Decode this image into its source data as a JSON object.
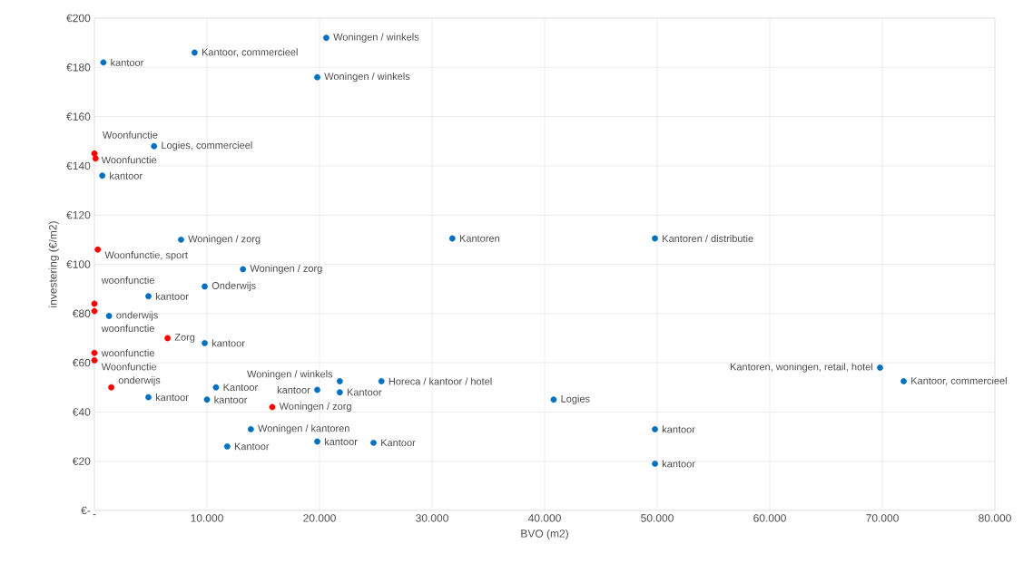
{
  "chart_data": {
    "type": "scatter",
    "xlabel": "BVO (m2)",
    "ylabel": "investering (€/m2)",
    "xlim": [
      0,
      80000
    ],
    "ylim": [
      0,
      200
    ],
    "xticks": [
      {
        "value": 0,
        "label": "-"
      },
      {
        "value": 10000,
        "label": "10.000"
      },
      {
        "value": 20000,
        "label": "20.000"
      },
      {
        "value": 30000,
        "label": "30.000"
      },
      {
        "value": 40000,
        "label": "40.000"
      },
      {
        "value": 50000,
        "label": "50.000"
      },
      {
        "value": 60000,
        "label": "60.000"
      },
      {
        "value": 70000,
        "label": "70.000"
      },
      {
        "value": 80000,
        "label": "80.000"
      }
    ],
    "yticks": [
      {
        "value": 0,
        "label": "€-"
      },
      {
        "value": 20,
        "label": "€20"
      },
      {
        "value": 40,
        "label": "€40"
      },
      {
        "value": 60,
        "label": "€60"
      },
      {
        "value": 80,
        "label": "€80"
      },
      {
        "value": 100,
        "label": "€100"
      },
      {
        "value": 120,
        "label": "€120"
      },
      {
        "value": 140,
        "label": "€140"
      },
      {
        "value": 160,
        "label": "€160"
      },
      {
        "value": 180,
        "label": "€180"
      },
      {
        "value": 200,
        "label": "€200"
      }
    ],
    "grid": true,
    "marker": "circle",
    "series": [
      {
        "color": "#0070c0",
        "x": [
          800,
          8900,
          20600,
          19800,
          5300,
          700,
          7700,
          13200,
          9800,
          4800,
          1300,
          9800,
          4800,
          10000,
          10800,
          13900,
          11800,
          19800,
          19800,
          21800,
          21800,
          25500,
          24800,
          40800,
          49800,
          31800,
          49800,
          49800,
          69800,
          71900
        ],
        "values": [
          182,
          186,
          192,
          176,
          148,
          136,
          110,
          98,
          91,
          87,
          79,
          68,
          46,
          45,
          50,
          33,
          26,
          28,
          49,
          52.5,
          48,
          52.5,
          27.5,
          45,
          110.5,
          110.5,
          33,
          19,
          58,
          52.5
        ]
      },
      {
        "color": "#ff0000",
        "x": [
          0,
          100,
          300,
          0,
          0,
          6500,
          0,
          0,
          1500,
          15800
        ],
        "values": [
          145,
          143,
          106,
          84,
          81,
          70,
          64,
          61,
          50,
          42
        ]
      }
    ],
    "annotations": [
      {
        "text": "kantoor",
        "x": 800,
        "y": 182
      },
      {
        "text": "Kantoor, commercieel",
        "x": 8900,
        "y": 186
      },
      {
        "text": "Woningen / winkels",
        "x": 20600,
        "y": 192
      },
      {
        "text": "Woningen / winkels",
        "x": 19800,
        "y": 176
      },
      {
        "text": "Logies, commercieel",
        "x": 5300,
        "y": 148
      },
      {
        "text": "kantoor",
        "x": 700,
        "y": 136
      },
      {
        "text": "Woningen / zorg",
        "x": 7700,
        "y": 110
      },
      {
        "text": "Woningen / zorg",
        "x": 13200,
        "y": 98
      },
      {
        "text": "Onderwijs",
        "x": 9800,
        "y": 91
      },
      {
        "text": "kantoor",
        "x": 4800,
        "y": 87
      },
      {
        "text": "onderwijs",
        "x": 1300,
        "y": 79
      },
      {
        "text": "kantoor",
        "x": 9800,
        "y": 68
      },
      {
        "text": "kantoor",
        "x": 4800,
        "y": 46
      },
      {
        "text": "kantoor",
        "x": 10000,
        "y": 45
      },
      {
        "text": "Kantoor",
        "x": 10800,
        "y": 50
      },
      {
        "text": "Woningen / kantoren",
        "x": 13900,
        "y": 33
      },
      {
        "text": "Kantoor",
        "x": 11800,
        "y": 26
      },
      {
        "text": "kantoor",
        "x": 19800,
        "y": 28
      },
      {
        "text": "kantoor",
        "x": 19800,
        "y": 49
      },
      {
        "text": "Woningen / winkels",
        "x": 21800,
        "y": 52.5
      },
      {
        "text": "Kantoor",
        "x": 21800,
        "y": 48
      },
      {
        "text": "Horeca / kantoor / hotel",
        "x": 25500,
        "y": 52.5
      },
      {
        "text": "Kantoor",
        "x": 24800,
        "y": 27.5
      },
      {
        "text": "Logies",
        "x": 40800,
        "y": 45
      },
      {
        "text": "Kantoren / distributie",
        "x": 49800,
        "y": 110.5
      },
      {
        "text": "Kantoren",
        "x": 31800,
        "y": 110.5
      },
      {
        "text": "kantoor",
        "x": 49800,
        "y": 33
      },
      {
        "text": "kantoor",
        "x": 49800,
        "y": 19
      },
      {
        "text": "Kantoren, woningen, retail, hotel",
        "x": 69800,
        "y": 58
      },
      {
        "text": "Kantoor, commercieel",
        "x": 71900,
        "y": 52.5
      },
      {
        "text": "Woonfunctie",
        "x": 0,
        "y": 145
      },
      {
        "text": "Woonfunctie",
        "x": 100,
        "y": 143
      },
      {
        "text": "Woonfunctie, sport",
        "x": 300,
        "y": 106
      },
      {
        "text": "woonfunctie",
        "x": 0,
        "y": 84
      },
      {
        "text": "woonfunctie",
        "x": 0,
        "y": 81
      },
      {
        "text": "Zorg",
        "x": 6500,
        "y": 70
      },
      {
        "text": "woonfunctie",
        "x": 0,
        "y": 64
      },
      {
        "text": "Woonfunctie",
        "x": 0,
        "y": 61
      },
      {
        "text": "onderwijs",
        "x": 1500,
        "y": 50
      },
      {
        "text": "Woningen / zorg",
        "x": 15800,
        "y": 42
      }
    ]
  }
}
